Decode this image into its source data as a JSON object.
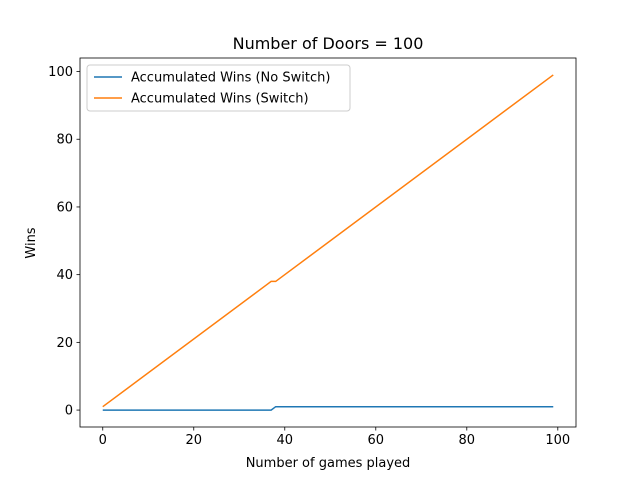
{
  "chart_data": {
    "type": "line",
    "title": "Number of Doors = 100",
    "xlabel": "Number of games played",
    "ylabel": "Wins",
    "xlim": [
      -5,
      104
    ],
    "ylim": [
      -5,
      104
    ],
    "xticks": [
      0,
      20,
      40,
      60,
      80,
      100
    ],
    "yticks": [
      0,
      20,
      40,
      60,
      80,
      100
    ],
    "grid": false,
    "legend_position": "top-left",
    "series": [
      {
        "name": "Accumulated Wins (No Switch)",
        "color": "#1f77b4",
        "points": [
          [
            0,
            0
          ],
          [
            37,
            0
          ],
          [
            38,
            1
          ],
          [
            99,
            1
          ]
        ]
      },
      {
        "name": "Accumulated Wins (Switch)",
        "color": "#ff7f0e",
        "points": [
          [
            0,
            1
          ],
          [
            36,
            37
          ],
          [
            37,
            38
          ],
          [
            38,
            38
          ],
          [
            99,
            99
          ]
        ]
      }
    ]
  }
}
